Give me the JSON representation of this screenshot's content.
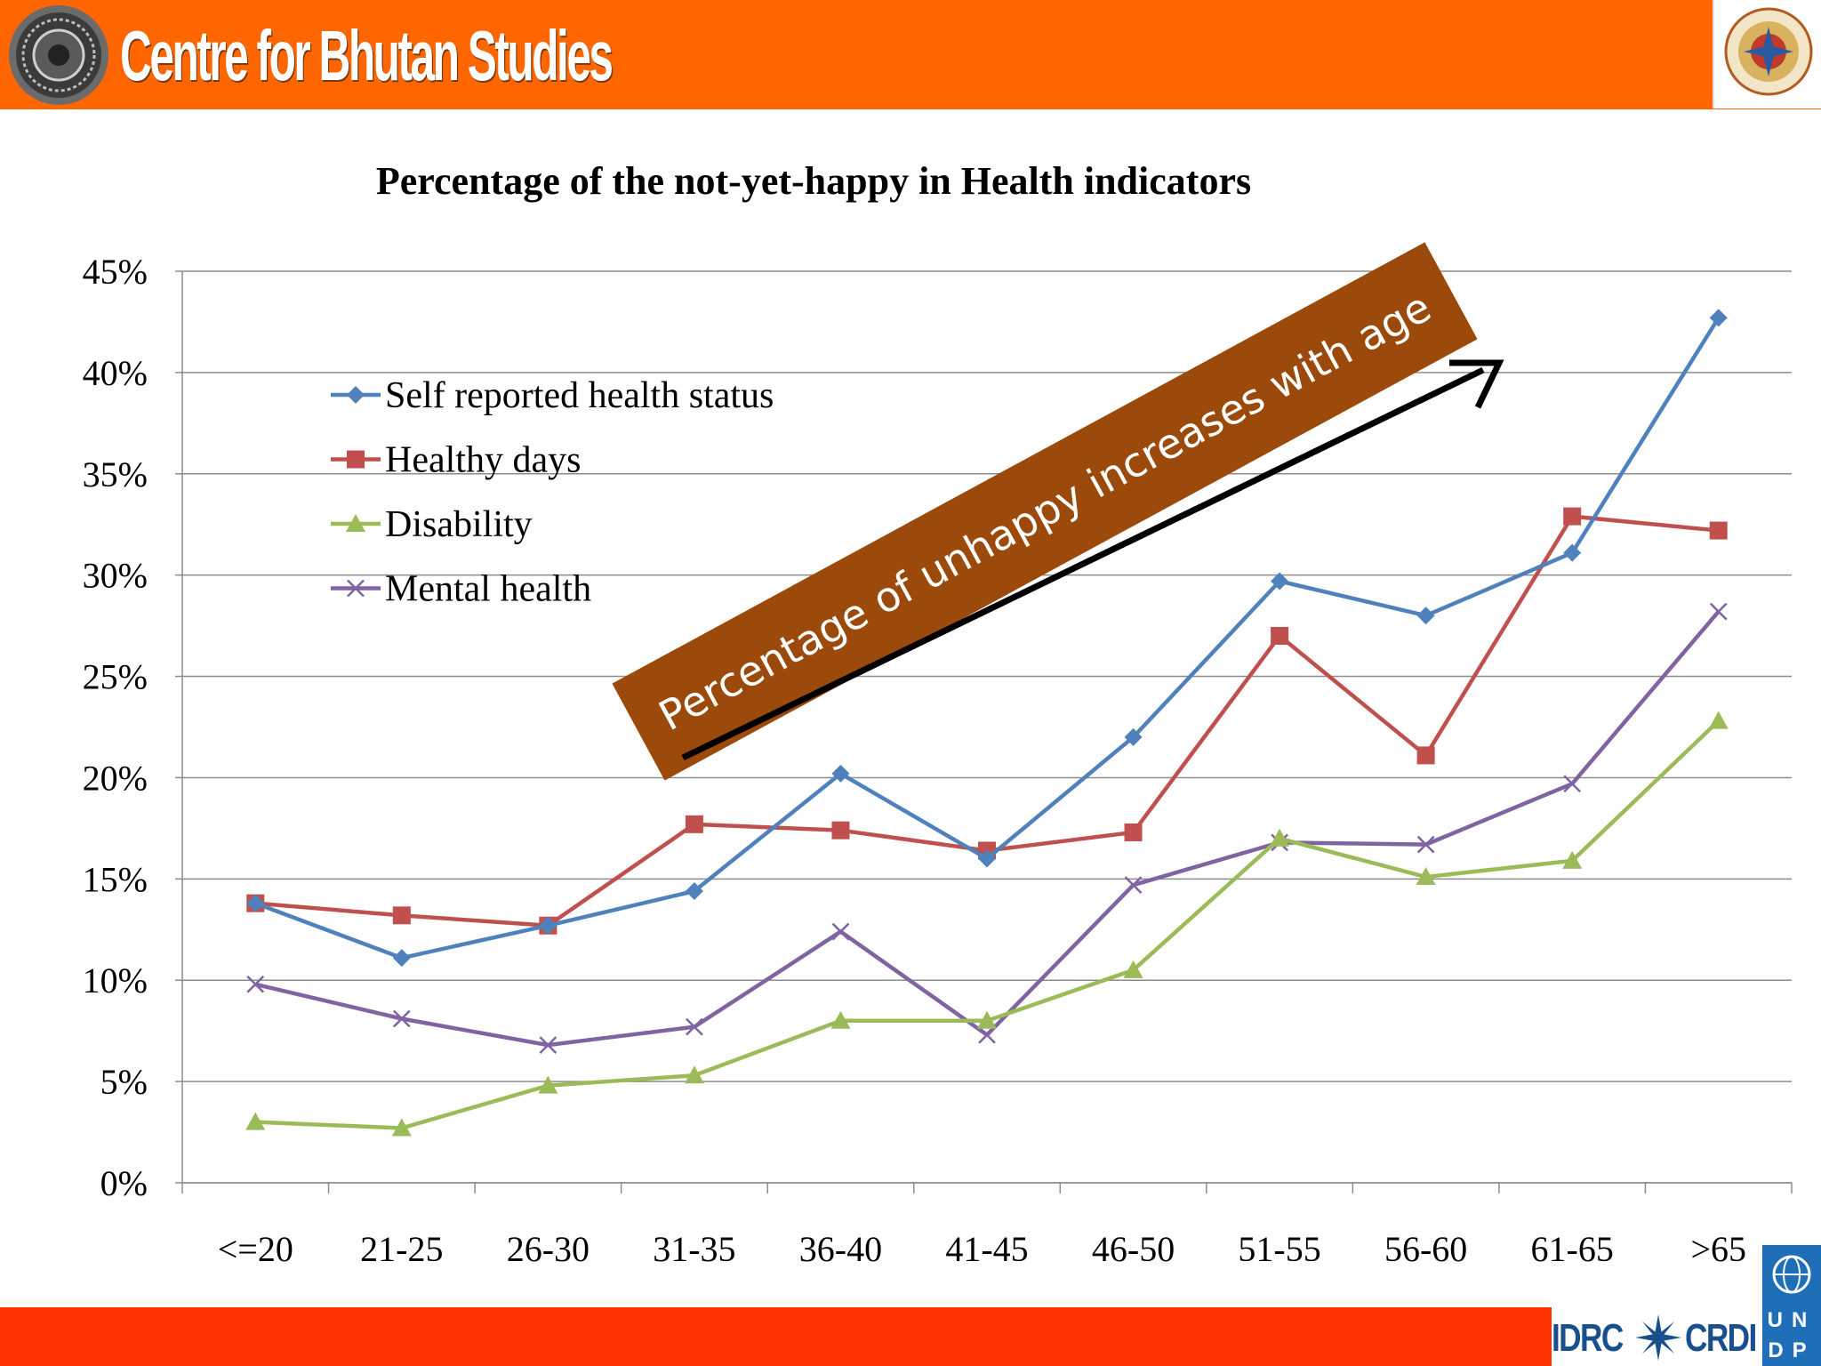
{
  "header": {
    "organization": "Centre for Bhutan Studies"
  },
  "footer": {
    "partner_left": "IDRC",
    "partner_right": "CRDI",
    "undp_top": "UN",
    "undp_bottom": "DP"
  },
  "annotation": {
    "banner_text": "Percentage of unhappy increases with age",
    "banner_color": "#9c4a0c",
    "arrow_color": "#000000"
  },
  "chart_data": {
    "type": "line",
    "title": "Percentage of the not-yet-happy in Health indicators",
    "xlabel": "",
    "ylabel": "",
    "categories": [
      "<=20",
      "21-25",
      "26-30",
      "31-35",
      "36-40",
      "41-45",
      "46-50",
      "51-55",
      "56-60",
      "61-65",
      ">65"
    ],
    "ylim": [
      0,
      45
    ],
    "yticks": [
      "0%",
      "5%",
      "10%",
      "15%",
      "20%",
      "25%",
      "30%",
      "35%",
      "40%",
      "45%"
    ],
    "grid": true,
    "legend_position": "upper-left",
    "series": [
      {
        "name": "Self reported health status",
        "color": "#4f81bd",
        "marker": "diamond",
        "values": [
          13.8,
          11.1,
          12.7,
          14.4,
          20.2,
          16.0,
          22.0,
          29.7,
          28.0,
          31.1,
          42.7
        ]
      },
      {
        "name": "Healthy days",
        "color": "#c0504d",
        "marker": "square",
        "values": [
          13.8,
          13.2,
          12.7,
          17.7,
          17.4,
          16.4,
          17.3,
          27.0,
          21.1,
          32.9,
          32.2
        ]
      },
      {
        "name": "Disability",
        "color": "#9bbb59",
        "marker": "triangle",
        "values": [
          3.0,
          2.7,
          4.8,
          5.3,
          8.0,
          8.0,
          10.5,
          17.0,
          15.1,
          15.9,
          22.8
        ]
      },
      {
        "name": "Mental health",
        "color": "#8064a2",
        "marker": "x",
        "values": [
          9.8,
          8.1,
          6.8,
          7.7,
          12.4,
          7.3,
          14.7,
          16.8,
          16.7,
          19.7,
          28.2
        ]
      }
    ]
  }
}
